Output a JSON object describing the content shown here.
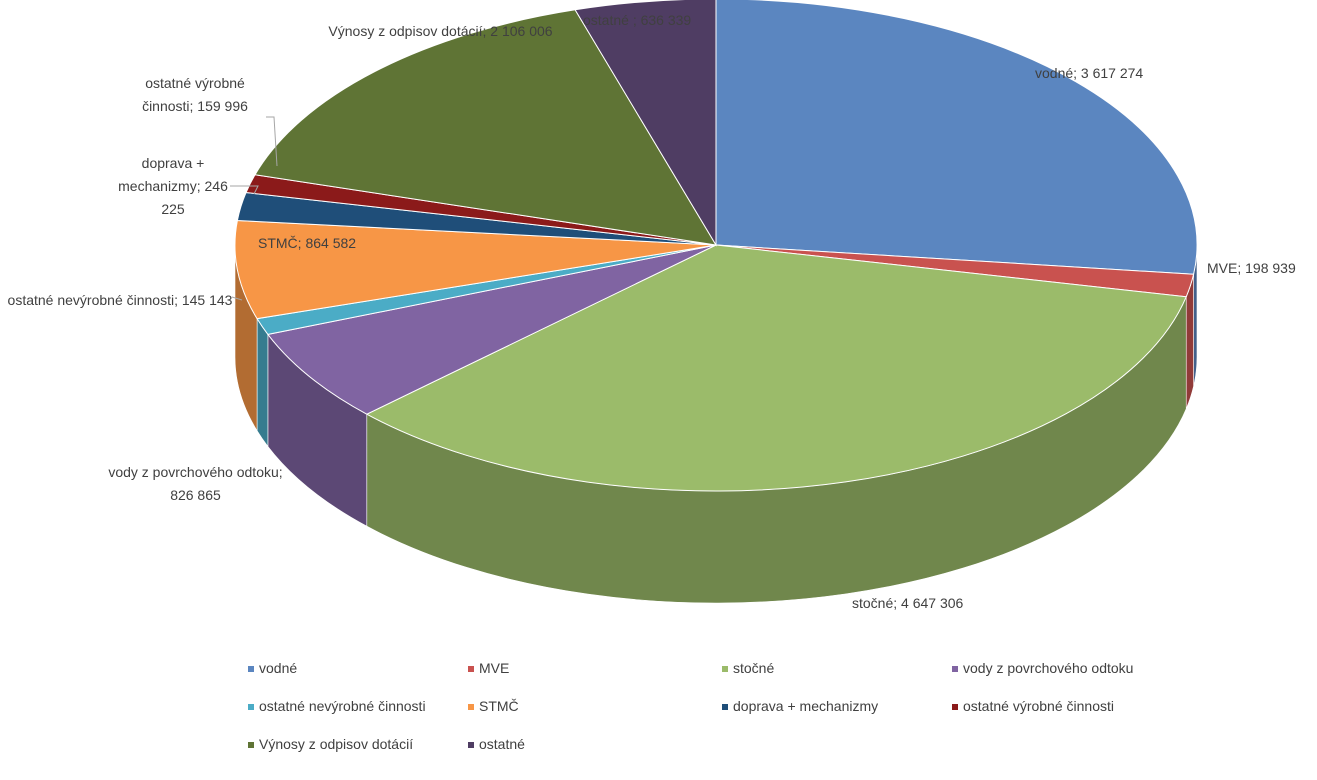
{
  "chart_data": {
    "type": "pie",
    "categories": [
      "vodné",
      "MVE",
      "stočné",
      "vody z povrchového odtoku",
      "ostatné nevýrobné činnosti",
      "STMČ",
      "doprava + mechanizmy",
      "ostatné výrobné činnosti",
      "Výnosy z odpisov dotácií",
      "ostatné"
    ],
    "values": [
      3617274,
      198939,
      4647306,
      826865,
      145143,
      864582,
      246225,
      159996,
      2106006,
      636339
    ],
    "value_labels": [
      "vodné; 3 617 274",
      "MVE; 198 939",
      "stočné; 4 647 306",
      "vody z povrchového odtoku; 826 865",
      "ostatné nevýrobné činnosti; 145 143",
      "STMČ; 864 582",
      "doprava + mechanizmy; 246 225",
      "ostatné výrobné činnosti; 159 996",
      "Výnosy z odpisov dotácií; 2 106 006",
      "ostatné ; 636 339"
    ],
    "colors": [
      "#5b86c0",
      "#c9524f",
      "#9bbb6a",
      "#8064a2",
      "#4bacc6",
      "#f79646",
      "#1f4e79",
      "#8b1a1a",
      "#5f7435",
      "#4f3d63"
    ],
    "legend": "bottom"
  }
}
